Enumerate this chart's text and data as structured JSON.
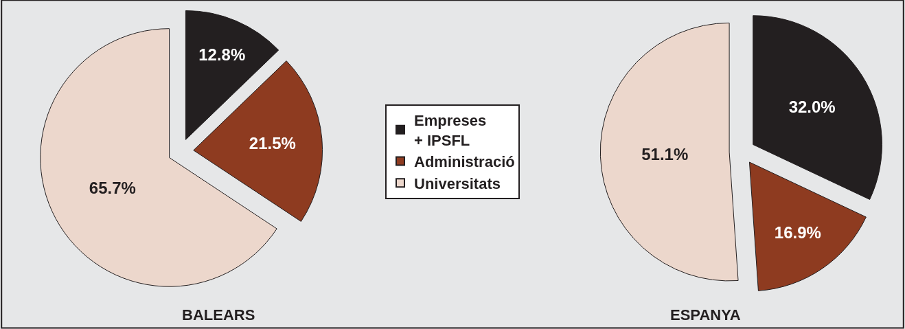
{
  "chart_data": [
    {
      "type": "pie",
      "title": "BALEARS",
      "categories": [
        "Empreses\n+ IPSFL",
        "Administració",
        "Universitats"
      ],
      "values": [
        12.8,
        21.5,
        65.7
      ],
      "colors": [
        "#231f20",
        "#8e3b20",
        "#ecd7cc"
      ],
      "value_labels": [
        "12.8%",
        "21.5%",
        "65.7%"
      ],
      "legend": "right"
    },
    {
      "type": "pie",
      "title": "ESPANYA",
      "categories": [
        null,
        null,
        null
      ],
      "values": [
        32.0,
        16.9,
        51.1
      ],
      "colors": [
        "#231f20",
        "#8e3b20",
        "#ecd7cc"
      ],
      "value_labels": [
        "32.0%",
        "16.9%",
        "51.1%"
      ]
    }
  ]
}
